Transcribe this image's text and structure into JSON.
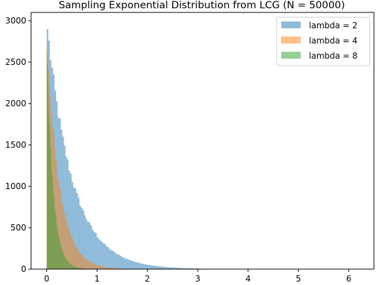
{
  "chart_data": {
    "type": "histogram",
    "title": "Sampling Exponential Distribution from LCG (N = 50000)",
    "xlabel": "",
    "ylabel": "",
    "xlim": [
      -0.31,
      6.5
    ],
    "ylim": [
      0,
      3100
    ],
    "x_ticks": [
      0,
      1,
      2,
      3,
      4,
      5,
      6
    ],
    "y_ticks": [
      0,
      500,
      1000,
      1500,
      2000,
      2500,
      3000
    ],
    "grid": false,
    "legend_position": "top-right",
    "bins": 200,
    "series": [
      {
        "name": "lambda = 2",
        "color": "#1f77b4",
        "bin_width": 0.031,
        "peak_count": 2900
      },
      {
        "name": "lambda = 4",
        "color": "#ff7f0e",
        "bin_width": 0.0155,
        "peak_count": 2690
      },
      {
        "name": "lambda = 8",
        "color": "#2ca02c",
        "bin_width": 0.0078,
        "peak_count": 2640
      }
    ]
  }
}
